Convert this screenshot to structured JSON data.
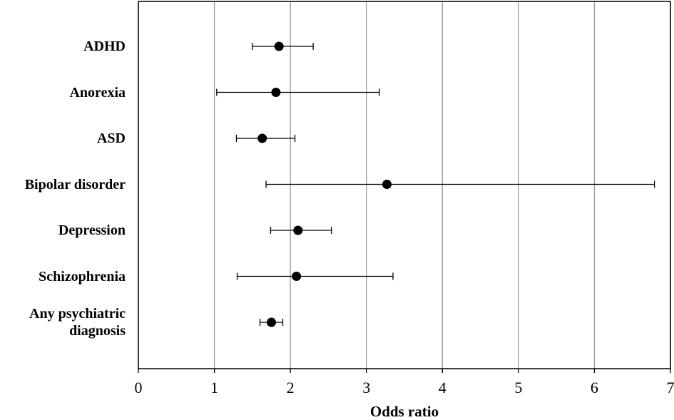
{
  "chart_data": {
    "type": "forest",
    "categories": [
      "ADHD",
      "Anorexia",
      "ASD",
      "Bipolar disorder",
      "Depression",
      "Schizophrenia",
      "Any psychiatric diagnosis"
    ],
    "values": [
      1.85,
      1.81,
      1.63,
      3.27,
      2.1,
      2.08,
      1.75
    ],
    "lower": [
      1.5,
      1.03,
      1.29,
      1.68,
      1.74,
      1.3,
      1.6
    ],
    "upper": [
      2.3,
      3.17,
      2.06,
      6.79,
      2.54,
      3.35,
      1.9
    ],
    "color": "#000000",
    "xlabel": "Odds ratio",
    "xlim": [
      0,
      7
    ],
    "xticks": [
      0,
      1,
      2,
      3,
      4,
      5,
      6,
      7
    ],
    "grid": true
  }
}
